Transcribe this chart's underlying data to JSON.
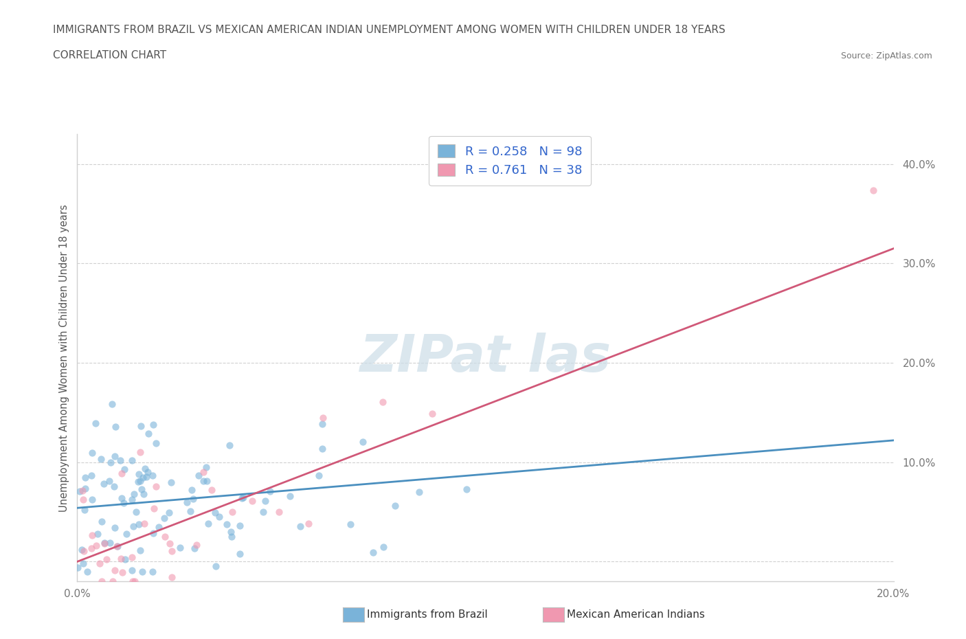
{
  "title_line1": "IMMIGRANTS FROM BRAZIL VS MEXICAN AMERICAN INDIAN UNEMPLOYMENT AMONG WOMEN WITH CHILDREN UNDER 18 YEARS",
  "title_line2": "CORRELATION CHART",
  "source_text": "Source: ZipAtlas.com",
  "ylabel": "Unemployment Among Women with Children Under 18 years",
  "xlim": [
    0.0,
    0.2
  ],
  "ylim": [
    -0.02,
    0.43
  ],
  "ytick_vals": [
    0.0,
    0.1,
    0.2,
    0.3,
    0.4
  ],
  "ytick_labels": [
    "",
    "10.0%",
    "20.0%",
    "30.0%",
    "40.0%"
  ],
  "xtick_vals": [
    0.0,
    0.05,
    0.1,
    0.15,
    0.2
  ],
  "xtick_labels": [
    "0.0%",
    "",
    "",
    "",
    "20.0%"
  ],
  "legend_label_brazil": "R = 0.258   N = 98",
  "legend_label_mexico": "R = 0.761   N = 38",
  "bottom_label_brazil": "Immigrants from Brazil",
  "bottom_label_mexico": "Mexican American Indians",
  "background_color": "#ffffff",
  "scatter_alpha": 0.6,
  "scatter_size": 55,
  "brazil_color": "#7ab3d9",
  "mexico_color": "#f098b0",
  "brazil_line_color": "#4a8fbf",
  "mexico_line_color": "#d05878",
  "grid_color": "#d0d0d0",
  "title_color": "#555555",
  "source_color": "#777777",
  "legend_text_color": "#3366cc",
  "watermark_color": "#ccdde8",
  "brazil_trend_x0": 0.0,
  "brazil_trend_y0": 0.054,
  "brazil_trend_x1": 0.2,
  "brazil_trend_y1": 0.122,
  "mexico_trend_x0": 0.0,
  "mexico_trend_y0": 0.0,
  "mexico_trend_x1": 0.2,
  "mexico_trend_y1": 0.315
}
